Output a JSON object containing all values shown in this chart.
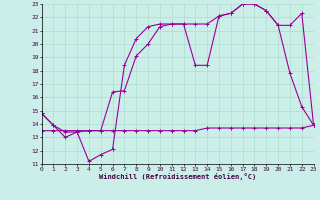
{
  "xlabel": "Windchill (Refroidissement éolien,°C)",
  "bg_color": "#cceee8",
  "grid_color": "#aaddcc",
  "line_color": "#990099",
  "xmin": 0,
  "xmax": 23,
  "ymin": 11,
  "ymax": 23,
  "line1_x": [
    0,
    1,
    2,
    3,
    4,
    5,
    6,
    7,
    8,
    9,
    10,
    11,
    12,
    13,
    14,
    15,
    16,
    17,
    18,
    19,
    20,
    21,
    22,
    23
  ],
  "line1_y": [
    14.8,
    13.9,
    13.0,
    13.4,
    11.2,
    11.7,
    12.1,
    18.4,
    20.4,
    21.3,
    21.5,
    21.5,
    21.5,
    18.4,
    18.4,
    22.1,
    22.3,
    23.0,
    23.0,
    22.5,
    21.4,
    17.8,
    15.3,
    13.9
  ],
  "line2_x": [
    0,
    1,
    2,
    3,
    4,
    5,
    6,
    7,
    8,
    9,
    10,
    11,
    12,
    13,
    14,
    15,
    16,
    17,
    18,
    19,
    20,
    21,
    22,
    23
  ],
  "line2_y": [
    14.8,
    13.9,
    13.4,
    13.4,
    13.5,
    13.5,
    16.4,
    16.5,
    19.1,
    20.0,
    21.3,
    21.5,
    21.5,
    21.5,
    21.5,
    22.1,
    22.3,
    23.0,
    23.0,
    22.5,
    21.4,
    21.4,
    22.3,
    13.9
  ],
  "line3_x": [
    0,
    1,
    2,
    3,
    4,
    5,
    6,
    7,
    8,
    9,
    10,
    11,
    12,
    13,
    14,
    15,
    16,
    17,
    18,
    19,
    20,
    21,
    22,
    23
  ],
  "line3_y": [
    13.5,
    13.5,
    13.5,
    13.5,
    13.5,
    13.5,
    13.5,
    13.5,
    13.5,
    13.5,
    13.5,
    13.5,
    13.5,
    13.5,
    13.7,
    13.7,
    13.7,
    13.7,
    13.7,
    13.7,
    13.7,
    13.7,
    13.7,
    13.9
  ]
}
